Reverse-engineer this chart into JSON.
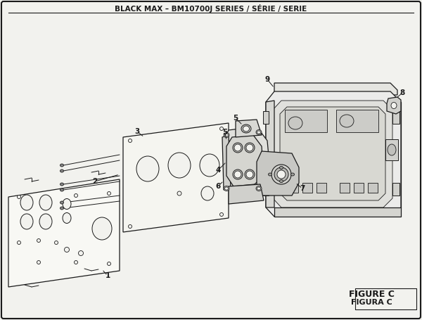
{
  "title": "BLACK MAX – BM10700J SERIES / SÉRIE / SERIE",
  "figure_label": "FIGURE C",
  "figura_label": "FIGURA C",
  "bg_color": "#f2f2ee",
  "line_color": "#1a1a1a"
}
